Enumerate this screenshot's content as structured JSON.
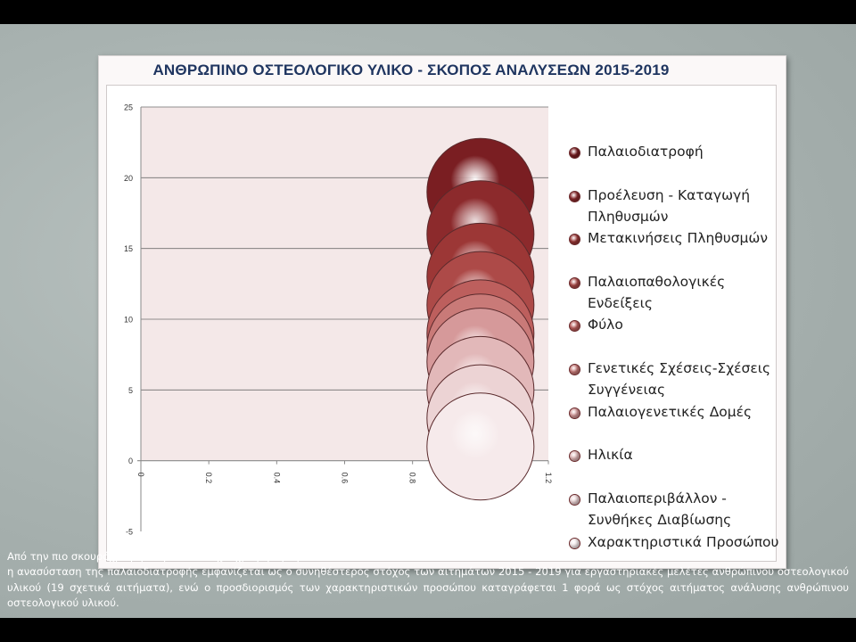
{
  "chart_data": {
    "type": "bubble",
    "title": "ΑΝΘΡΩΠΙΝΟ ΟΣΤΕΟΛΟΓΙΚΟ ΥΛΙΚΟ -  ΣΚΟΠΟΣ ΑΝΑΛΥΣΕΩΝ 2015-2019",
    "xlabel": "",
    "ylabel": "",
    "xlim": [
      0,
      1.2
    ],
    "ylim": [
      -5,
      25
    ],
    "x_ticks": [
      "0",
      "0.2",
      "0.4",
      "0.6",
      "0.8",
      "1",
      "1.2"
    ],
    "y_ticks": [
      "-5",
      "0",
      "5",
      "10",
      "15",
      "20",
      "25"
    ],
    "grid": "horizontal",
    "legend_position": "right",
    "series": [
      {
        "name": "Παλαιοδιατροφή",
        "x": 1,
        "y": 19,
        "color": "#7a1e22"
      },
      {
        "name": "Προέλευση - Καταγωγή Πληθυσμών",
        "x": 1,
        "y": 16,
        "color": "#8c2a2c"
      },
      {
        "name": "Μετακινήσεις Πληθυσμών",
        "x": 1,
        "y": 13,
        "color": "#9c3736"
      },
      {
        "name": "Παλαιοπαθολογικές Ενδείξεις",
        "x": 1,
        "y": 11,
        "color": "#ad4a48"
      },
      {
        "name": "Φύλο",
        "x": 1,
        "y": 9,
        "color": "#bd5f5d"
      },
      {
        "name": "Γενετικές Σχέσεις-Σχέσεις Συγγένειας",
        "x": 1,
        "y": 8,
        "color": "#c97a78"
      },
      {
        "name": "Παλαιογενετικές Δομές",
        "x": 1,
        "y": 7,
        "color": "#d6999a"
      },
      {
        "name": "Ηλικία",
        "x": 1,
        "y": 5,
        "color": "#e2b8b9"
      },
      {
        "name": "Παλαιοπεριβάλλον - Συνθήκες Διαβίωσης",
        "x": 1,
        "y": 3,
        "color": "#ecd3d4"
      },
      {
        "name": "Χαρακτηριστικά Προσώπου",
        "x": 1,
        "y": 1,
        "color": "#f6eaeb"
      }
    ]
  },
  "caption": {
    "line1": "Από την πιο σκουρόχρωμη στην πιο ανοιχτόχρωμη σφαίρα:",
    "line2": "η ανασύσταση της παλαιοδιατροφής εμφανίζεται ως ο συνηθέστερος  στόχος των αιτημάτων  2015 - 2019  για εργαστηριακές μελέτες ανθρώπινου οστεολογικού υλικού (19 σχετικά αιτήματα), ενώ ο προσδιορισμός των χαρακτηριστικών προσώπου καταγράφεται 1 φορά ως στόχος αιτήματος ανάλυσης ανθρώπινου οστεολογικού υλικού."
  }
}
